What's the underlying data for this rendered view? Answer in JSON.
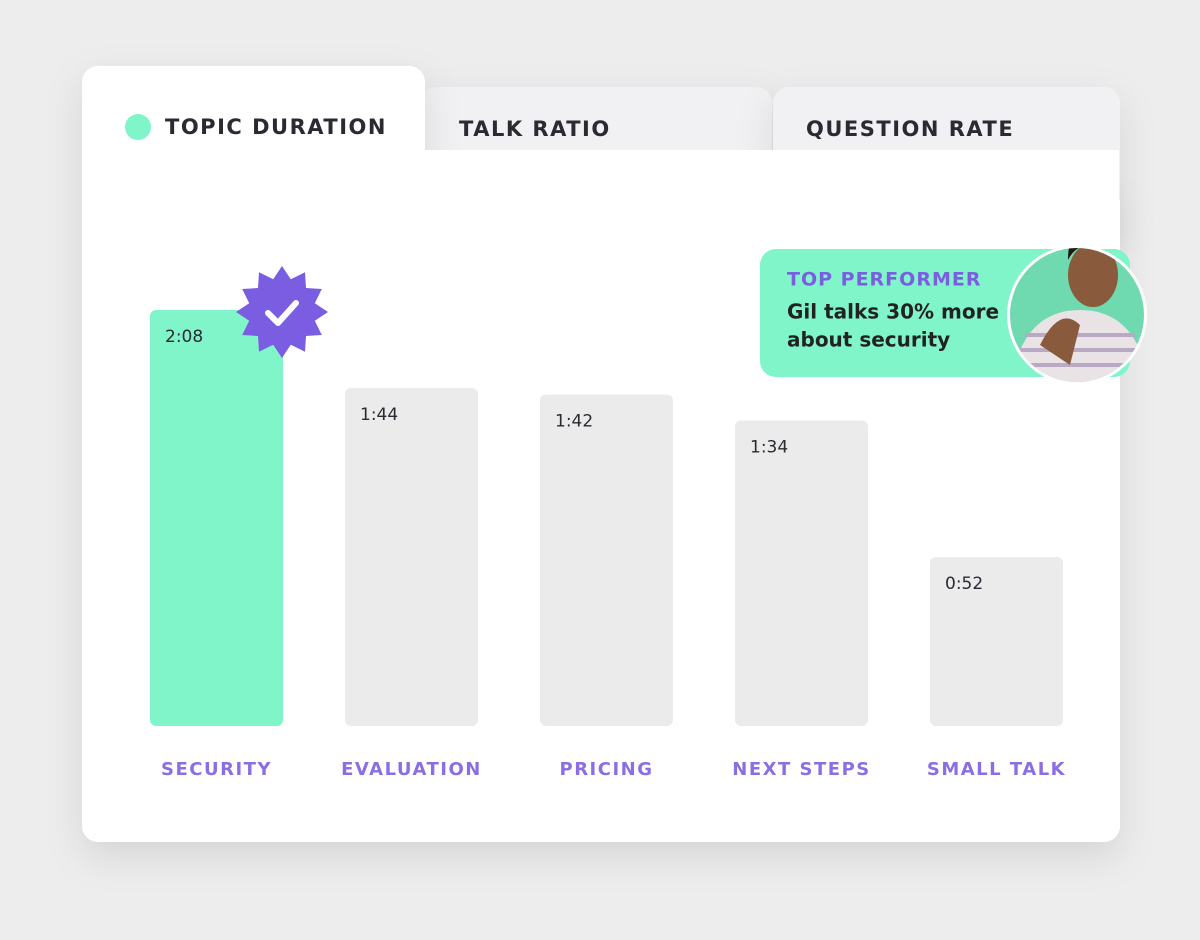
{
  "tabs": [
    "TOPIC DURATION",
    "TALK RATIO",
    "QUESTION RATE"
  ],
  "chart_data": {
    "type": "bar",
    "categories": [
      "SECURITY",
      "EVALUATION",
      "PRICING",
      "NEXT STEPS",
      "SMALL TALK"
    ],
    "values": [
      128,
      104,
      102,
      94,
      52
    ],
    "value_labels": [
      "2:08",
      "1:44",
      "1:42",
      "1:34",
      "0:52"
    ],
    "colors": [
      "#7ff5c9",
      "#ebebeb",
      "#ebebeb",
      "#ebebeb",
      "#ebebeb"
    ]
  },
  "callout": {
    "title": "TOP PERFORMER",
    "text_lines": [
      "Gil talks 30% more",
      "about security"
    ]
  }
}
